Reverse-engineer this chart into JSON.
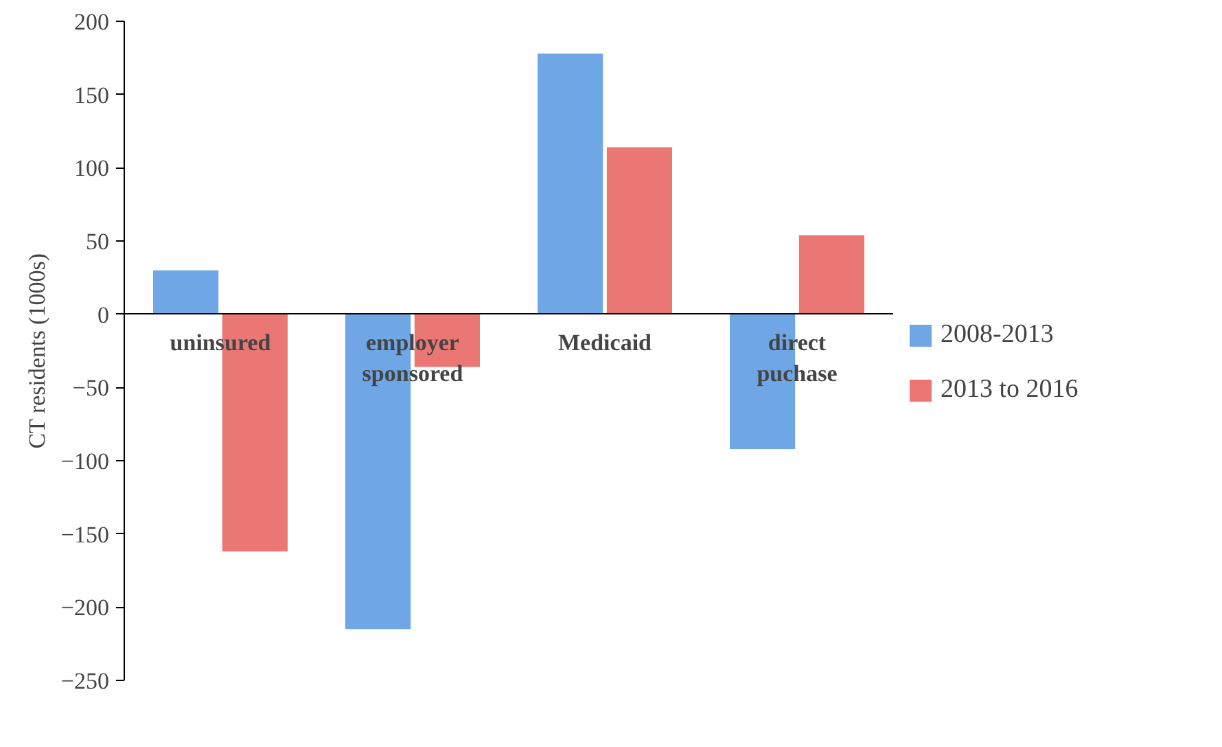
{
  "chart_data": {
    "type": "bar",
    "ylabel": "CT residents (1000s)",
    "categories": [
      "uninsured",
      "employer sponsored",
      "Medicaid",
      "direct puchase"
    ],
    "series": [
      {
        "name": "2008-2013",
        "color": "#6ea6e6",
        "values": [
          30,
          -215,
          178,
          -92
        ]
      },
      {
        "name": "2013 to 2016",
        "color": "#ea7773",
        "values": [
          -162,
          -36,
          114,
          54
        ]
      }
    ],
    "ylim": [
      -250,
      200
    ],
    "yticks": [
      -250,
      -200,
      -150,
      -100,
      -50,
      0,
      50,
      100,
      150,
      200
    ],
    "grid": false,
    "legend": "right"
  }
}
